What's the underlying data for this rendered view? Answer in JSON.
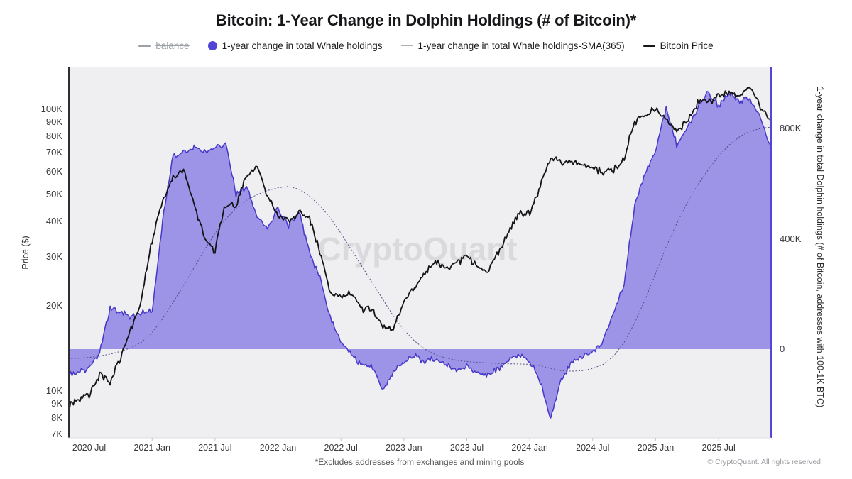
{
  "header": {
    "title": "Bitcoin: 1-Year Change in Dolphin Holdings (# of Bitcoin)*"
  },
  "watermark": "CryptoQuant",
  "footnote": "*Excludes addresses from exchanges and mining pools",
  "copyright": "© CryptoQuant. All rights reserved",
  "legend": [
    {
      "label": "balance",
      "marker": "line",
      "color": "#9aa0a6",
      "disabled": true
    },
    {
      "label": "1-year change in total Whale holdings",
      "marker": "dot",
      "color": "#5245d5",
      "disabled": false
    },
    {
      "label": "1-year change in total Whale holdings-SMA(365)",
      "marker": "thin-line",
      "color": "#aeb2b8",
      "disabled": false
    },
    {
      "label": "Bitcoin Price",
      "marker": "line",
      "color": "#17171b",
      "disabled": false
    }
  ],
  "left_axis": {
    "label": "Price ($)",
    "scale": "log",
    "ticks": [
      {
        "v": 100,
        "t": "100K"
      },
      {
        "v": 90,
        "t": "90K"
      },
      {
        "v": 80,
        "t": "80K"
      },
      {
        "v": 70,
        "t": "70K"
      },
      {
        "v": 60,
        "t": "60K"
      },
      {
        "v": 50,
        "t": "50K"
      },
      {
        "v": 40,
        "t": "40K"
      },
      {
        "v": 30,
        "t": "30K"
      },
      {
        "v": 20,
        "t": "20K"
      },
      {
        "v": 10,
        "t": "10K"
      },
      {
        "v": 9,
        "t": "9K"
      },
      {
        "v": 8,
        "t": "8K"
      },
      {
        "v": 7,
        "t": "7K"
      }
    ]
  },
  "right_axis": {
    "label": "1-year change in total Dolphin holdings (# of Bitcoin, addresses with 100-1K BTC)",
    "scale": "linear",
    "ticks": [
      {
        "v": 800,
        "t": "800K"
      },
      {
        "v": 400,
        "t": "400K"
      },
      {
        "v": 0,
        "t": "0"
      }
    ]
  },
  "x_axis": {
    "ticks": [
      {
        "month_index": 2,
        "label": "2020 Jul"
      },
      {
        "month_index": 8,
        "label": "2021 Jan"
      },
      {
        "month_index": 14,
        "label": "2021 Jul"
      },
      {
        "month_index": 20,
        "label": "2022 Jan"
      },
      {
        "month_index": 26,
        "label": "2022 Jul"
      },
      {
        "month_index": 32,
        "label": "2023 Jan"
      },
      {
        "month_index": 38,
        "label": "2023 Jul"
      },
      {
        "month_index": 44,
        "label": "2024 Jan"
      },
      {
        "month_index": 50,
        "label": "2024 Jul"
      },
      {
        "month_index": 56,
        "label": "2025 Jan"
      },
      {
        "month_index": 62,
        "label": "2025 Jul"
      }
    ]
  },
  "colors": {
    "area_fill": "#6a5ae0",
    "area_stroke": "#4638c8",
    "sma_line": "#4a4a85",
    "price_line": "#141417",
    "left_axis_line": "#2f2f33",
    "right_axis_line": "#5546d6",
    "plot_background": "#efeff1",
    "watermark": "#c9c9cd"
  },
  "chart_data": {
    "type": "line",
    "title": "Bitcoin: 1-Year Change in Dolphin Holdings (# of Bitcoin)*",
    "x_start_month": "2020-05",
    "x_step": "1 month",
    "x_points": 68,
    "left_axis_scale": "log",
    "left_ylim_kusd": [
      6.8,
      141
    ],
    "right_ylim_kbtc": [
      -322,
      1021
    ],
    "legend_position": "top",
    "grid": false,
    "series": [
      {
        "name": "1-year change in total Whale holdings",
        "axis": "right",
        "unit": "thousand BTC",
        "render": "area",
        "values_kbtc": [
          -90,
          -85,
          -70,
          -15,
          155,
          135,
          115,
          130,
          135,
          460,
          700,
          710,
          735,
          720,
          730,
          745,
          560,
          590,
          480,
          440,
          510,
          450,
          500,
          350,
          260,
          110,
          30,
          -20,
          -55,
          -70,
          -150,
          -80,
          -45,
          -25,
          -45,
          -30,
          -55,
          -75,
          -60,
          -85,
          -95,
          -70,
          -40,
          -15,
          -45,
          -120,
          -250,
          -110,
          -45,
          -30,
          -15,
          30,
          130,
          240,
          520,
          640,
          720,
          880,
          740,
          800,
          870,
          930,
          880,
          930,
          900,
          905,
          840,
          720
        ]
      },
      {
        "name": "1-year change in total Whale holdings-SMA(365)",
        "axis": "right",
        "unit": "thousand BTC",
        "render": "thin-dashed-line",
        "values_kbtc": [
          -35,
          -33,
          -30,
          -25,
          -18,
          -8,
          5,
          25,
          60,
          110,
          170,
          230,
          295,
          360,
          420,
          470,
          510,
          540,
          560,
          575,
          585,
          590,
          580,
          555,
          520,
          475,
          420,
          360,
          300,
          240,
          180,
          120,
          70,
          30,
          0,
          -20,
          -32,
          -40,
          -45,
          -48,
          -50,
          -52,
          -53,
          -54,
          -55,
          -60,
          -70,
          -78,
          -80,
          -78,
          -70,
          -55,
          -25,
          25,
          95,
          180,
          275,
          370,
          455,
          530,
          595,
          650,
          700,
          740,
          770,
          790,
          800,
          805
        ]
      },
      {
        "name": "Bitcoin Price",
        "axis": "left",
        "unit": "thousand USD",
        "render": "line",
        "values_kusd": [
          8.8,
          9.4,
          9.6,
          11.5,
          10.7,
          13,
          16.5,
          21,
          34,
          47,
          57,
          60,
          46,
          35,
          31,
          46,
          45,
          58,
          63,
          49,
          42,
          40,
          43,
          41,
          31,
          22,
          21.5,
          22.5,
          19.5,
          19.5,
          16.8,
          16.8,
          21,
          23.5,
          26,
          29,
          27.5,
          28.5,
          30,
          27.5,
          26.5,
          31,
          36.5,
          43,
          42.5,
          53,
          68,
          65,
          65,
          64,
          62,
          60,
          61,
          67,
          90,
          97,
          100,
          92,
          84,
          90,
          105,
          106,
          112,
          114,
          112,
          121,
          101,
          89
        ]
      }
    ]
  }
}
